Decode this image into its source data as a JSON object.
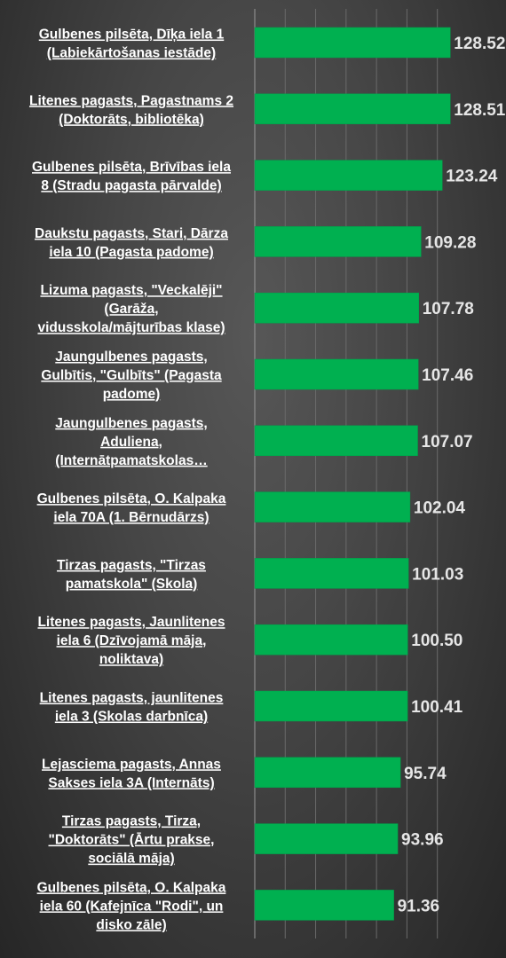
{
  "colors": {
    "bar": "#00b050",
    "bar_edge": "#00a04a",
    "value_text": "#e6e6e6",
    "label_text": "#ffffff",
    "grid": "#6a6a6a",
    "axis": "#9a9a9a"
  },
  "chart_data": {
    "type": "bar",
    "orientation": "horizontal",
    "title": "",
    "xlabel": "",
    "ylabel": "",
    "grid": true,
    "legend": "none",
    "xlim": [
      0,
      130
    ],
    "categories": [
      [
        "Gulbenes pilsēta, Dīķa iela 1",
        "(Labiekārtošanas iestāde)"
      ],
      [
        "Litenes pagasts, Pagastnams 2",
        "(Doktorāts, bibliotēka)"
      ],
      [
        "Gulbenes pilsēta, Brīvības iela",
        "8 (Stradu pagasta pārvalde)"
      ],
      [
        "Daukstu pagasts, Stari, Dārza",
        "iela 10 (Pagasta padome)"
      ],
      [
        "Lizuma pagasts, \"Veckalēji\"",
        "(Garāža,",
        "vidusskola/mājturības klase)"
      ],
      [
        "Jaungulbenes pagasts,",
        "Gulbītis, \"Gulbīts\" (Pagasta",
        "padome)"
      ],
      [
        "Jaungulbenes pagasts,",
        "Aduliena,",
        "(Internātpamatskolas…"
      ],
      [
        "Gulbenes pilsēta, O. Kalpaka",
        "iela 70A (1. Bērnudārzs)"
      ],
      [
        "Tirzas pagasts, \"Tirzas",
        "pamatskola\" (Skola)"
      ],
      [
        "Litenes pagasts, Jaunlitenes",
        "iela 6 (Dzīvojamā māja,",
        "noliktava)"
      ],
      [
        "Litenes pagasts, jaunlitenes",
        "iela 3 (Skolas darbnīca)"
      ],
      [
        "Lejasciema pagasts, Annas",
        "Sakses iela 3A (Internāts)"
      ],
      [
        "Tirzas pagasts, Tirza,",
        "\"Doktorāts\" (Ārtu prakse,",
        "sociālā māja)"
      ],
      [
        "Gulbenes pilsēta, O. Kalpaka",
        "iela 60 (Kafejnīca \"Rodi\", un",
        "disko zāle)"
      ]
    ],
    "values": [
      128.52,
      128.51,
      123.24,
      109.28,
      107.78,
      107.46,
      107.07,
      102.04,
      101.03,
      100.5,
      100.41,
      95.74,
      93.96,
      91.36
    ],
    "value_labels": [
      "128.52",
      "128.51",
      "123.24",
      "109.28",
      "107.78",
      "107.46",
      "107.07",
      "102.04",
      "101.03",
      "100.50",
      "100.41",
      "95.74",
      "93.96",
      "91.36"
    ]
  }
}
